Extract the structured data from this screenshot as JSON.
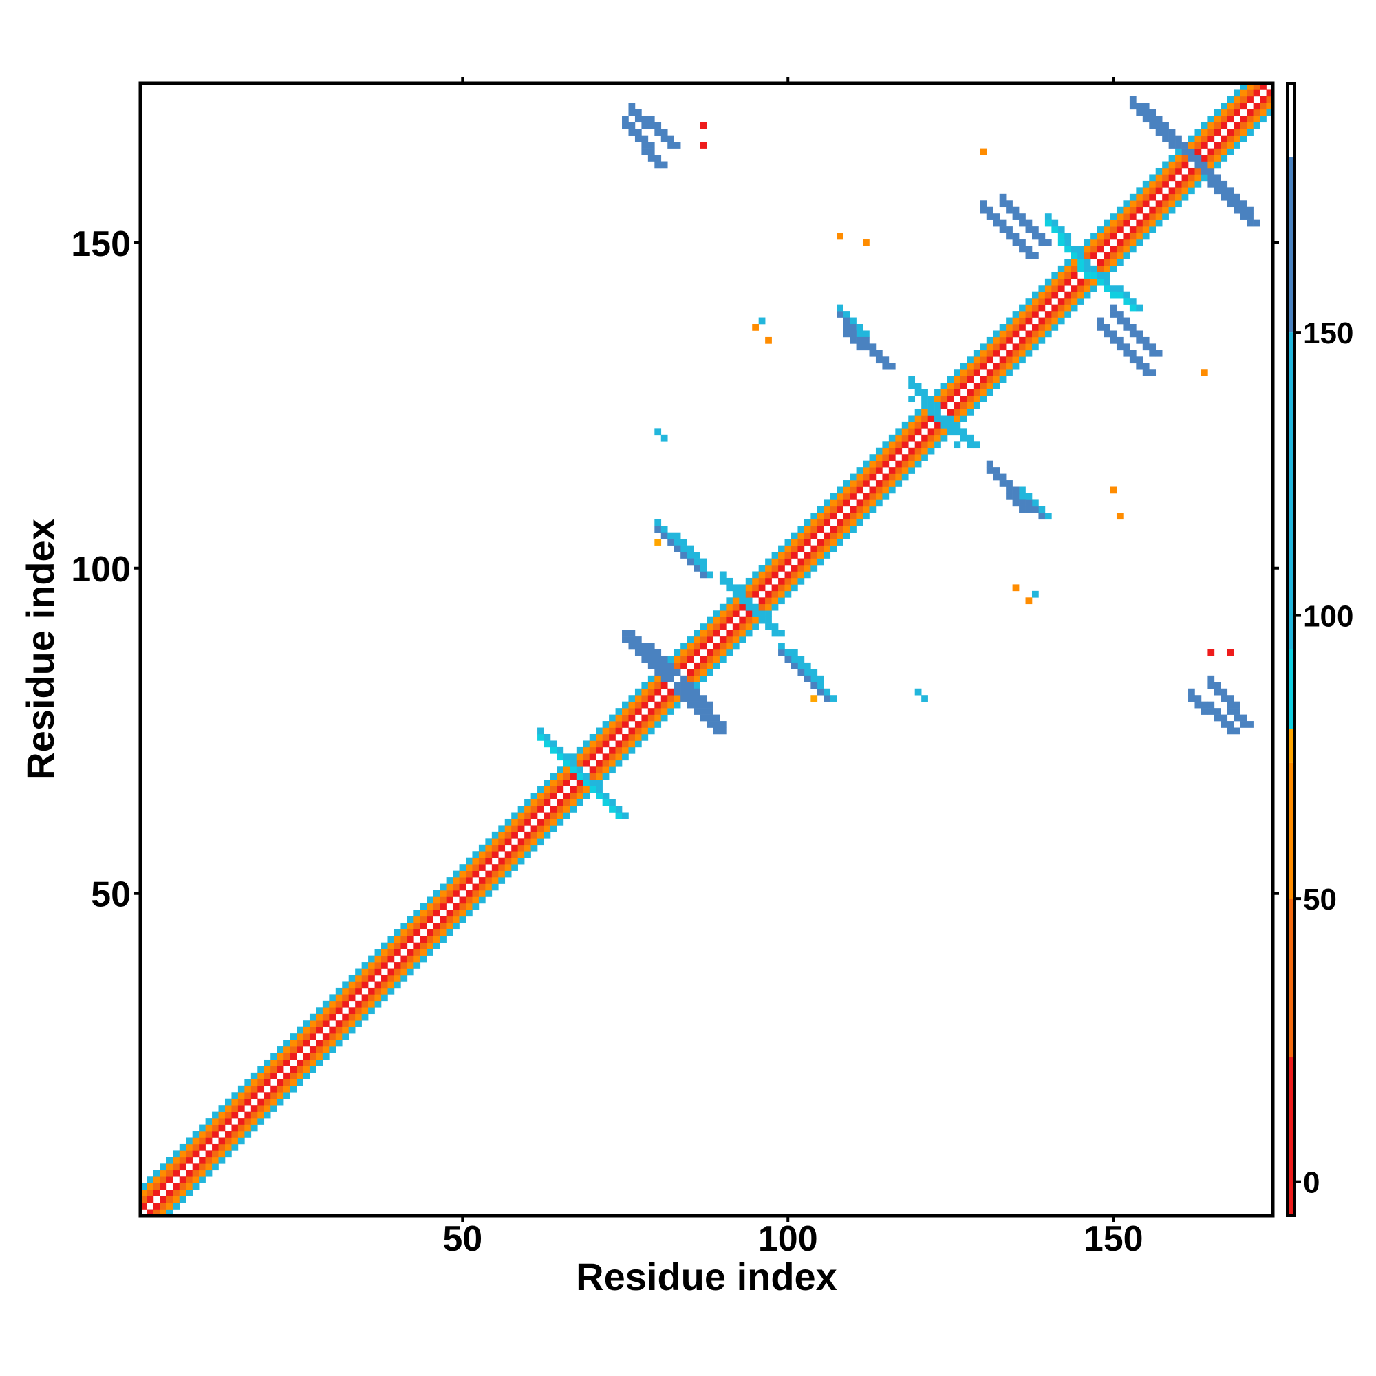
{
  "chart_data": {
    "type": "heatmap",
    "title": "",
    "xlabel": "Residue index",
    "ylabel": "Residue index",
    "xlim": [
      0.5,
      174.5
    ],
    "ylim": [
      0.5,
      174.5
    ],
    "x_ticks": [
      50,
      100,
      150
    ],
    "y_ticks": [
      50,
      100,
      150
    ],
    "grid": false,
    "colorbar": {
      "label": "",
      "range": [
        -6,
        194
      ],
      "ticks": [
        0,
        50,
        100,
        150
      ],
      "stops": [
        {
          "from": -6,
          "to": 22,
          "color": "#ee1c1c"
        },
        {
          "from": 22,
          "to": 50,
          "color": "#f46a10"
        },
        {
          "from": 50,
          "to": 74,
          "color": "#ff8c00"
        },
        {
          "from": 74,
          "to": 80,
          "color": "#ffa500"
        },
        {
          "from": 80,
          "to": 94,
          "color": "#10cfe0"
        },
        {
          "from": 94,
          "to": 150,
          "color": "#22b6dc"
        },
        {
          "from": 150,
          "to": 181,
          "color": "#4a82c0"
        },
        {
          "from": 181,
          "to": 194,
          "color": "#ffffff"
        }
      ]
    },
    "description": "Symmetric residue-residue contact map (174 x 174). The main diagonal band holds near-sequence contacts (values ~0-60); off-diagonal anti-parallel streaks (values ~100-170) mark beta-sheet pairings.",
    "diagonal_band": {
      "i_range": [
        1,
        174
      ],
      "offsets": [
        1,
        2,
        3,
        4
      ],
      "values": [
        10,
        30,
        55,
        100
      ]
    },
    "off_diagonal_streaks": [
      {
        "i": [
          75,
          80
        ],
        "j": [
          168,
          162
        ],
        "value": 160
      },
      {
        "i": [
          130,
          137
        ],
        "j": [
          155,
          148
        ],
        "value": 160
      },
      {
        "i": [
          108,
          113
        ],
        "j": [
          139,
          133
        ],
        "value": 155
      },
      {
        "i": [
          150,
          156
        ],
        "j": [
          139,
          133
        ],
        "value": 160
      },
      {
        "i": [
          131,
          136
        ],
        "j": [
          115,
          109
        ],
        "value": 160
      },
      {
        "i": [
          80,
          86
        ],
        "j": [
          106,
          101
        ],
        "value": 150
      },
      {
        "i": [
          75,
          81
        ],
        "j": [
          89,
          83
        ],
        "value": 160
      },
      {
        "i": [
          84,
          89
        ],
        "j": [
          82,
          76
        ],
        "value": 160
      },
      {
        "i": [
          99,
          104
        ],
        "j": [
          87,
          82
        ],
        "value": 155
      },
      {
        "i": [
          165,
          170
        ],
        "j": [
          82,
          76
        ],
        "value": 160
      },
      {
        "i": [
          153,
          159
        ],
        "j": [
          171,
          165
        ],
        "value": 160
      },
      {
        "i": [
          162,
          170
        ],
        "j": [
          163,
          155
        ],
        "value": 160
      },
      {
        "i": [
          119,
          125
        ],
        "j": [
          128,
          121
        ],
        "value": 110
      },
      {
        "i": [
          90,
          96
        ],
        "j": [
          98,
          92
        ],
        "value": 110
      },
      {
        "i": [
          62,
          70
        ],
        "j": [
          74,
          66
        ],
        "value": 90
      },
      {
        "i": [
          145,
          153
        ],
        "j": [
          146,
          140
        ],
        "value": 80
      }
    ],
    "isolated_points": [
      {
        "i": 96,
        "j": 138,
        "value": 95
      },
      {
        "i": 97,
        "j": 135,
        "value": 70
      },
      {
        "i": 126,
        "j": 119,
        "value": 100
      },
      {
        "i": 120,
        "j": 81,
        "value": 100
      },
      {
        "i": 80,
        "j": 121,
        "value": 100
      },
      {
        "i": 108,
        "j": 151,
        "value": 60
      },
      {
        "i": 137,
        "j": 95,
        "value": 65
      },
      {
        "i": 164,
        "j": 130,
        "value": 70
      },
      {
        "i": 150,
        "j": 112,
        "value": 60
      },
      {
        "i": 104,
        "j": 80,
        "value": 75
      },
      {
        "i": 165,
        "j": 87,
        "value": 10
      },
      {
        "i": 87,
        "j": 168,
        "value": 10
      }
    ]
  }
}
